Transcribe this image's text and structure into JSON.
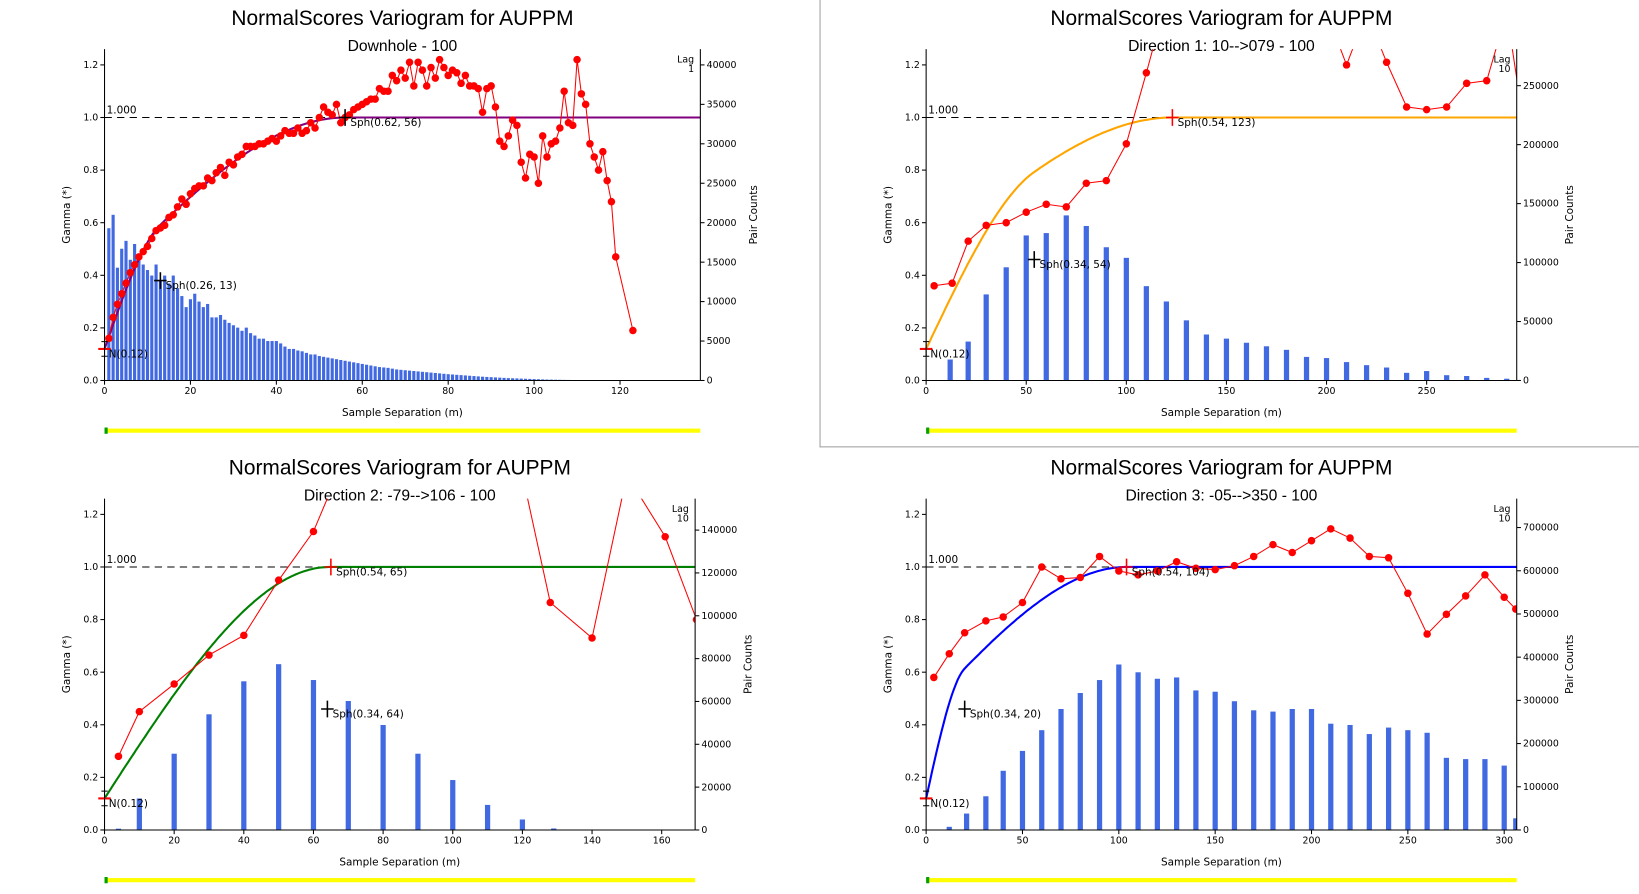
{
  "chart_data": [
    {
      "type": "line",
      "title": "NormalScores  Variogram for AUPPM",
      "subtitle": "Downhole - 100",
      "xlabel": "Sample Separation (m)",
      "ylabel": "Gamma (*)",
      "y2label": "Pair Counts",
      "lag_label": "Lag",
      "lag_value": "1",
      "sill_label": "1.000",
      "xlim": [
        0,
        138.7
      ],
      "ylim": [
        0,
        1.26
      ],
      "y2lim": [
        0,
        42000
      ],
      "xticks": [
        0,
        20,
        40,
        60,
        80,
        100,
        120
      ],
      "yticks": [
        "0.0",
        "0.2",
        "0.4",
        "0.6",
        "0.8",
        "1.0",
        "1.2"
      ],
      "y2ticks": [
        0,
        5000,
        10000,
        15000,
        20000,
        25000,
        30000,
        35000,
        40000
      ],
      "model_color": "#800080",
      "nugget": {
        "value": 0.12,
        "label": "N(0.12)"
      },
      "structures": [
        {
          "type": "Sph",
          "sill": 0.26,
          "range": 13,
          "label": "Sph(0.26, 13)",
          "marker_color": "#000000"
        },
        {
          "type": "Sph",
          "sill": 0.62,
          "range": 56,
          "label": "Sph(0.62, 56)",
          "marker_color": "#000000"
        }
      ],
      "experimental": {
        "x": [
          1,
          2,
          3,
          4,
          5,
          6,
          7,
          8,
          9,
          10,
          11,
          12,
          13,
          14,
          15,
          16,
          17,
          18,
          19,
          20,
          21,
          22,
          23,
          24,
          25,
          26,
          27,
          28,
          29,
          30,
          31,
          32,
          33,
          34,
          35,
          36,
          37,
          38,
          39,
          40,
          41,
          42,
          43,
          44,
          45,
          46,
          47,
          48,
          49,
          50,
          51,
          52,
          53,
          54,
          55,
          56,
          57,
          58,
          59,
          60,
          61,
          62,
          63,
          64,
          65,
          66,
          67,
          68,
          69,
          70,
          71,
          72,
          73,
          74,
          75,
          76,
          77,
          78,
          79,
          80,
          81,
          82,
          83,
          84,
          85,
          86,
          87,
          88,
          89,
          90,
          91,
          92,
          93,
          94,
          95,
          96,
          97,
          98,
          99,
          100,
          101,
          102,
          103,
          104,
          105,
          106,
          107,
          108,
          109,
          110,
          111,
          112,
          113,
          114,
          115,
          116,
          117,
          118,
          119,
          123
        ],
        "gamma": [
          0.16,
          0.24,
          0.29,
          0.33,
          0.37,
          0.41,
          0.44,
          0.47,
          0.49,
          0.51,
          0.54,
          0.57,
          0.58,
          0.59,
          0.62,
          0.63,
          0.66,
          0.69,
          0.67,
          0.71,
          0.73,
          0.74,
          0.74,
          0.77,
          0.76,
          0.79,
          0.81,
          0.78,
          0.83,
          0.82,
          0.85,
          0.86,
          0.89,
          0.89,
          0.89,
          0.9,
          0.9,
          0.91,
          0.92,
          0.91,
          0.93,
          0.95,
          0.94,
          0.94,
          0.96,
          0.94,
          0.95,
          0.98,
          0.96,
          1.0,
          1.04,
          1.02,
          1.01,
          1.05,
          0.98,
          1.0,
          1.01,
          1.03,
          1.04,
          1.05,
          1.06,
          1.07,
          1.07,
          1.11,
          1.1,
          1.1,
          1.16,
          1.14,
          1.18,
          1.15,
          1.21,
          1.12,
          1.21,
          1.18,
          1.12,
          1.19,
          1.15,
          1.22,
          1.19,
          1.16,
          1.18,
          1.17,
          1.13,
          1.16,
          1.12,
          1.12,
          1.11,
          1.02,
          1.11,
          1.12,
          1.04,
          0.91,
          0.89,
          0.93,
          0.99,
          0.97,
          0.83,
          0.77,
          0.86,
          0.85,
          0.75,
          0.93,
          0.85,
          0.9,
          0.91,
          0.96,
          1.1,
          0.98,
          0.97,
          1.22,
          1.09,
          1.05,
          0.9,
          0.85,
          0.8,
          0.87,
          0.76,
          0.68,
          0.47,
          0.19
        ],
        "color": "#ff0000"
      },
      "pair_counts": {
        "x": [
          1,
          2,
          3,
          4,
          5,
          6,
          7,
          8,
          9,
          10,
          11,
          12,
          13,
          14,
          15,
          16,
          17,
          18,
          19,
          20,
          21,
          22,
          23,
          24,
          25,
          26,
          27,
          28,
          29,
          30,
          31,
          32,
          33,
          34,
          35,
          36,
          37,
          38,
          39,
          40,
          41,
          42,
          43,
          44,
          45,
          46,
          47,
          48,
          49,
          50,
          51,
          52,
          53,
          54,
          55,
          56,
          57,
          58,
          59,
          60,
          61,
          62,
          63,
          64,
          65,
          66,
          67,
          68,
          69,
          70,
          71,
          72,
          73,
          74,
          75,
          76,
          77,
          78,
          79,
          80,
          81,
          82,
          83,
          84,
          85,
          86,
          87,
          88,
          89,
          90,
          91,
          92,
          93,
          94,
          95,
          96,
          97,
          98,
          99,
          100,
          101,
          102,
          103,
          104,
          105,
          106,
          107,
          108,
          109,
          110,
          111,
          112,
          113,
          114,
          115,
          116,
          117,
          118,
          119,
          120,
          121,
          122,
          123
        ],
        "values": [
          19300,
          21000,
          14300,
          16700,
          17700,
          15300,
          17300,
          16000,
          14700,
          14000,
          13300,
          14700,
          12700,
          13300,
          12300,
          13300,
          11700,
          10700,
          9300,
          10300,
          11000,
          10000,
          9300,
          9700,
          8000,
          8000,
          8300,
          7700,
          7300,
          7000,
          6700,
          6300,
          6700,
          6000,
          5700,
          5300,
          5300,
          5000,
          5000,
          5000,
          4700,
          4300,
          4000,
          4000,
          3800,
          3700,
          3500,
          3300,
          3300,
          3100,
          3000,
          2900,
          2800,
          2700,
          2600,
          2500,
          2400,
          2300,
          2200,
          2100,
          2000,
          1900,
          1800,
          1700,
          1650,
          1600,
          1500,
          1400,
          1350,
          1300,
          1250,
          1200,
          1150,
          1100,
          1050,
          1000,
          950,
          900,
          850,
          800,
          760,
          720,
          680,
          640,
          600,
          560,
          520,
          480,
          450,
          420,
          390,
          360,
          330,
          300,
          280,
          260,
          240,
          220,
          200,
          180,
          160,
          140,
          120,
          110,
          100,
          90,
          80,
          70,
          60,
          50,
          45,
          40,
          35,
          30,
          25,
          20,
          18,
          15,
          12,
          10,
          8,
          6,
          5
        ],
        "color": "#4169e1"
      }
    },
    {
      "type": "line",
      "title": "NormalScores  Variogram for AUPPM",
      "subtitle": "Direction 1: 10-->079 - 100",
      "xlabel": "Sample Separation (m)",
      "ylabel": "Gamma (*)",
      "y2label": "Pair Counts",
      "lag_label": "Lag",
      "lag_value": "10",
      "sill_label": "1.000",
      "xlim": [
        0,
        295
      ],
      "ylim": [
        0,
        1.26
      ],
      "y2lim": [
        0,
        281000
      ],
      "xticks": [
        0,
        50,
        100,
        150,
        200,
        250
      ],
      "yticks": [
        "0.0",
        "0.2",
        "0.4",
        "0.6",
        "0.8",
        "1.0",
        "1.2"
      ],
      "y2ticks": [
        0,
        50000,
        100000,
        150000,
        200000,
        250000
      ],
      "model_color": "#ffa500",
      "nugget": {
        "value": 0.12,
        "label": "N(0.12)"
      },
      "structures": [
        {
          "type": "Sph",
          "sill": 0.34,
          "range": 54,
          "label": "Sph(0.34, 54)",
          "marker_color": "#000000"
        },
        {
          "type": "Sph",
          "sill": 0.54,
          "range": 123,
          "label": "Sph(0.54, 123)",
          "marker_color": "#ff0000"
        }
      ],
      "experimental": {
        "x": [
          4,
          13,
          21,
          30,
          40,
          50,
          60,
          70,
          80,
          90,
          100,
          110,
          120,
          200,
          210,
          220,
          230,
          240,
          250,
          260,
          270,
          280,
          290,
          300
        ],
        "gamma": [
          0.36,
          0.37,
          0.53,
          0.59,
          0.6,
          0.64,
          0.67,
          0.66,
          0.75,
          0.76,
          0.9,
          1.17,
          1.45,
          1.4,
          1.2,
          1.4,
          1.21,
          1.04,
          1.03,
          1.04,
          1.13,
          1.14,
          1.4,
          0.9
        ],
        "color": "#ff0000"
      },
      "pair_counts": {
        "x": [
          12,
          21,
          30,
          40,
          50,
          60,
          70,
          80,
          90,
          100,
          110,
          120,
          130,
          140,
          150,
          160,
          170,
          180,
          190,
          200,
          210,
          220,
          230,
          240,
          250,
          260,
          270,
          280,
          290
        ],
        "values": [
          17800,
          33000,
          73000,
          96000,
          123000,
          125000,
          140000,
          131000,
          113000,
          104000,
          80000,
          67000,
          51000,
          39000,
          35500,
          32000,
          29000,
          26000,
          20000,
          19000,
          15600,
          13000,
          11000,
          6500,
          8000,
          4500,
          3800,
          2200,
          1500
        ],
        "color": "#4169e1"
      }
    },
    {
      "type": "line",
      "title": "NormalScores  Variogram for AUPPM",
      "subtitle": "Direction 2: -79-->106 - 100",
      "xlabel": "Sample Separation (m)",
      "ylabel": "Gamma (*)",
      "y2label": "Pair Counts",
      "lag_label": "Lag",
      "lag_value": "10",
      "sill_label": "1.000",
      "xlim": [
        0,
        169.6
      ],
      "ylim": [
        0,
        1.26
      ],
      "y2lim": [
        0,
        154700
      ],
      "xticks": [
        0,
        20,
        40,
        60,
        80,
        100,
        120,
        140,
        160
      ],
      "yticks": [
        "0.0",
        "0.2",
        "0.4",
        "0.6",
        "0.8",
        "1.0",
        "1.2"
      ],
      "y2ticks": [
        0,
        20000,
        40000,
        60000,
        80000,
        100000,
        120000,
        140000
      ],
      "model_color": "#008000",
      "nugget": {
        "value": 0.12,
        "label": "N(0.12)"
      },
      "structures": [
        {
          "type": "Sph",
          "sill": 0.34,
          "range": 64,
          "label": "Sph(0.34, 64)",
          "marker_color": "#000000"
        },
        {
          "type": "Sph",
          "sill": 0.54,
          "range": 65,
          "label": "Sph(0.54, 65)",
          "marker_color": "#ff0000"
        }
      ],
      "experimental": {
        "x": [
          4,
          10,
          20,
          30,
          40,
          50,
          60,
          70,
          120,
          128,
          140,
          150,
          161,
          170
        ],
        "gamma": [
          0.28,
          0.45,
          0.555,
          0.665,
          0.74,
          0.95,
          1.135,
          1.45,
          1.35,
          0.865,
          0.73,
          1.35,
          1.115,
          0.8
        ],
        "color": "#ff0000"
      },
      "pair_counts": {
        "x": [
          4,
          10,
          20,
          30,
          40,
          50,
          60,
          70,
          80,
          90,
          100,
          110,
          120,
          129,
          140,
          150
        ],
        "values": [
          600,
          14700,
          35600,
          54000,
          69400,
          77400,
          70000,
          60200,
          49000,
          35600,
          23300,
          11700,
          4900,
          700,
          150,
          100
        ],
        "color": "#4169e1"
      }
    },
    {
      "type": "line",
      "title": "NormalScores  Variogram for AUPPM",
      "subtitle": "Direction 3: -05-->350 - 100",
      "xlabel": "Sample Separation (m)",
      "ylabel": "Gamma (*)",
      "y2label": "Pair Counts",
      "lag_label": "Lag",
      "lag_value": "10",
      "sill_label": "1.000",
      "xlim": [
        0,
        306.5
      ],
      "ylim": [
        0,
        1.26
      ],
      "y2lim": [
        0,
        767000
      ],
      "xticks": [
        0,
        50,
        100,
        150,
        200,
        250,
        300
      ],
      "yticks": [
        "0.0",
        "0.2",
        "0.4",
        "0.6",
        "0.8",
        "1.0",
        "1.2"
      ],
      "y2ticks": [
        0,
        100000,
        200000,
        300000,
        400000,
        500000,
        600000,
        700000
      ],
      "model_color": "#0000ff",
      "nugget": {
        "value": 0.12,
        "label": "N(0.12)"
      },
      "structures": [
        {
          "type": "Sph",
          "sill": 0.34,
          "range": 20,
          "label": "Sph(0.34, 20)",
          "marker_color": "#000000"
        },
        {
          "type": "Sph",
          "sill": 0.54,
          "range": 104,
          "label": "Sph(0.54, 104)",
          "marker_color": "#ff0000"
        }
      ],
      "experimental": {
        "x": [
          4,
          12,
          20,
          31,
          40,
          50,
          60,
          70,
          80,
          90,
          100,
          110,
          120,
          130,
          140,
          150,
          160,
          170,
          180,
          190,
          200,
          210,
          220,
          230,
          240,
          250,
          260,
          270,
          280,
          290,
          300,
          306
        ],
        "gamma": [
          0.58,
          0.67,
          0.75,
          0.795,
          0.81,
          0.865,
          1.0,
          0.955,
          0.96,
          1.04,
          0.985,
          0.97,
          0.985,
          1.02,
          0.995,
          0.99,
          1.005,
          1.04,
          1.085,
          1.055,
          1.1,
          1.145,
          1.11,
          1.04,
          1.035,
          0.9,
          0.745,
          0.82,
          0.89,
          0.97,
          0.885,
          0.84
        ],
        "color": "#ff0000"
      },
      "pair_counts": {
        "x": [
          12,
          21,
          31,
          40,
          50,
          60,
          70,
          80,
          90,
          100,
          110,
          120,
          130,
          140,
          150,
          160,
          170,
          180,
          190,
          200,
          210,
          220,
          230,
          240,
          250,
          260,
          270,
          280,
          290,
          300,
          306
        ],
        "values": [
          7300,
          38000,
          78000,
          137000,
          183000,
          231000,
          280000,
          317000,
          347000,
          383000,
          365000,
          350000,
          353000,
          323000,
          320000,
          298000,
          277000,
          274000,
          280000,
          280000,
          246000,
          243000,
          222000,
          237000,
          231000,
          225000,
          167000,
          164000,
          164000,
          149000,
          27000
        ],
        "color": "#4169e1"
      }
    }
  ]
}
